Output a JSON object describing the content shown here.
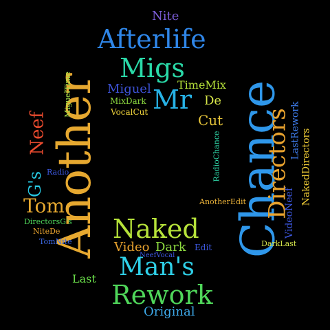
{
  "words": [
    {
      "text": "Nite",
      "color": "#7a5cd6"
    },
    {
      "text": "Afterlife",
      "color": "#2f86e8"
    },
    {
      "text": "Migs",
      "color": "#2ad9a8"
    },
    {
      "text": "Another",
      "color": "#e6a830"
    },
    {
      "text": "Chance",
      "color": "#2f97ea"
    },
    {
      "text": "Miguel",
      "color": "#3d52d6"
    },
    {
      "text": "TimeMix",
      "color": "#b6e23a"
    },
    {
      "text": "Mr",
      "color": "#27b2e6"
    },
    {
      "text": "MixDark",
      "color": "#8edc40"
    },
    {
      "text": "VocalCut",
      "color": "#f0d43c"
    },
    {
      "text": "De",
      "color": "#d9e84a"
    },
    {
      "text": "MiguelTime",
      "color": "#a7e24a"
    },
    {
      "text": "G's",
      "color": "#26c6e0"
    },
    {
      "text": "Neef",
      "color": "#e84a2e"
    },
    {
      "text": "Cut",
      "color": "#e6c43a"
    },
    {
      "text": "Directors",
      "color": "#e8a22e"
    },
    {
      "text": "LastRework",
      "color": "#3d7ae8"
    },
    {
      "text": "NakedDirectors",
      "color": "#f0cc36"
    },
    {
      "text": "RadioChance",
      "color": "#2fd6a8"
    },
    {
      "text": "Radio",
      "color": "#3d58e0"
    },
    {
      "text": "Tom",
      "color": "#e6a830"
    },
    {
      "text": "AnotherEdit",
      "color": "#f0b63a"
    },
    {
      "text": "VideoNeef",
      "color": "#3d58e0"
    },
    {
      "text": "DirectorsG's",
      "color": "#4fd65a"
    },
    {
      "text": "Naked",
      "color": "#b6e23a"
    },
    {
      "text": "NiteDe",
      "color": "#f0a830"
    },
    {
      "text": "TomNite",
      "color": "#3d6ae8"
    },
    {
      "text": "Video",
      "color": "#e8a22e"
    },
    {
      "text": "Dark",
      "color": "#8edc40"
    },
    {
      "text": "Edit",
      "color": "#3d58e0"
    },
    {
      "text": "NeefVocal",
      "color": "#3d58e0"
    },
    {
      "text": "DarkLast",
      "color": "#d2e24a"
    },
    {
      "text": "Man's",
      "color": "#2fd0e8"
    },
    {
      "text": "Last",
      "color": "#6ade4a"
    },
    {
      "text": "Rework",
      "color": "#4fd65a"
    },
    {
      "text": "Original",
      "color": "#3da8e8"
    }
  ]
}
